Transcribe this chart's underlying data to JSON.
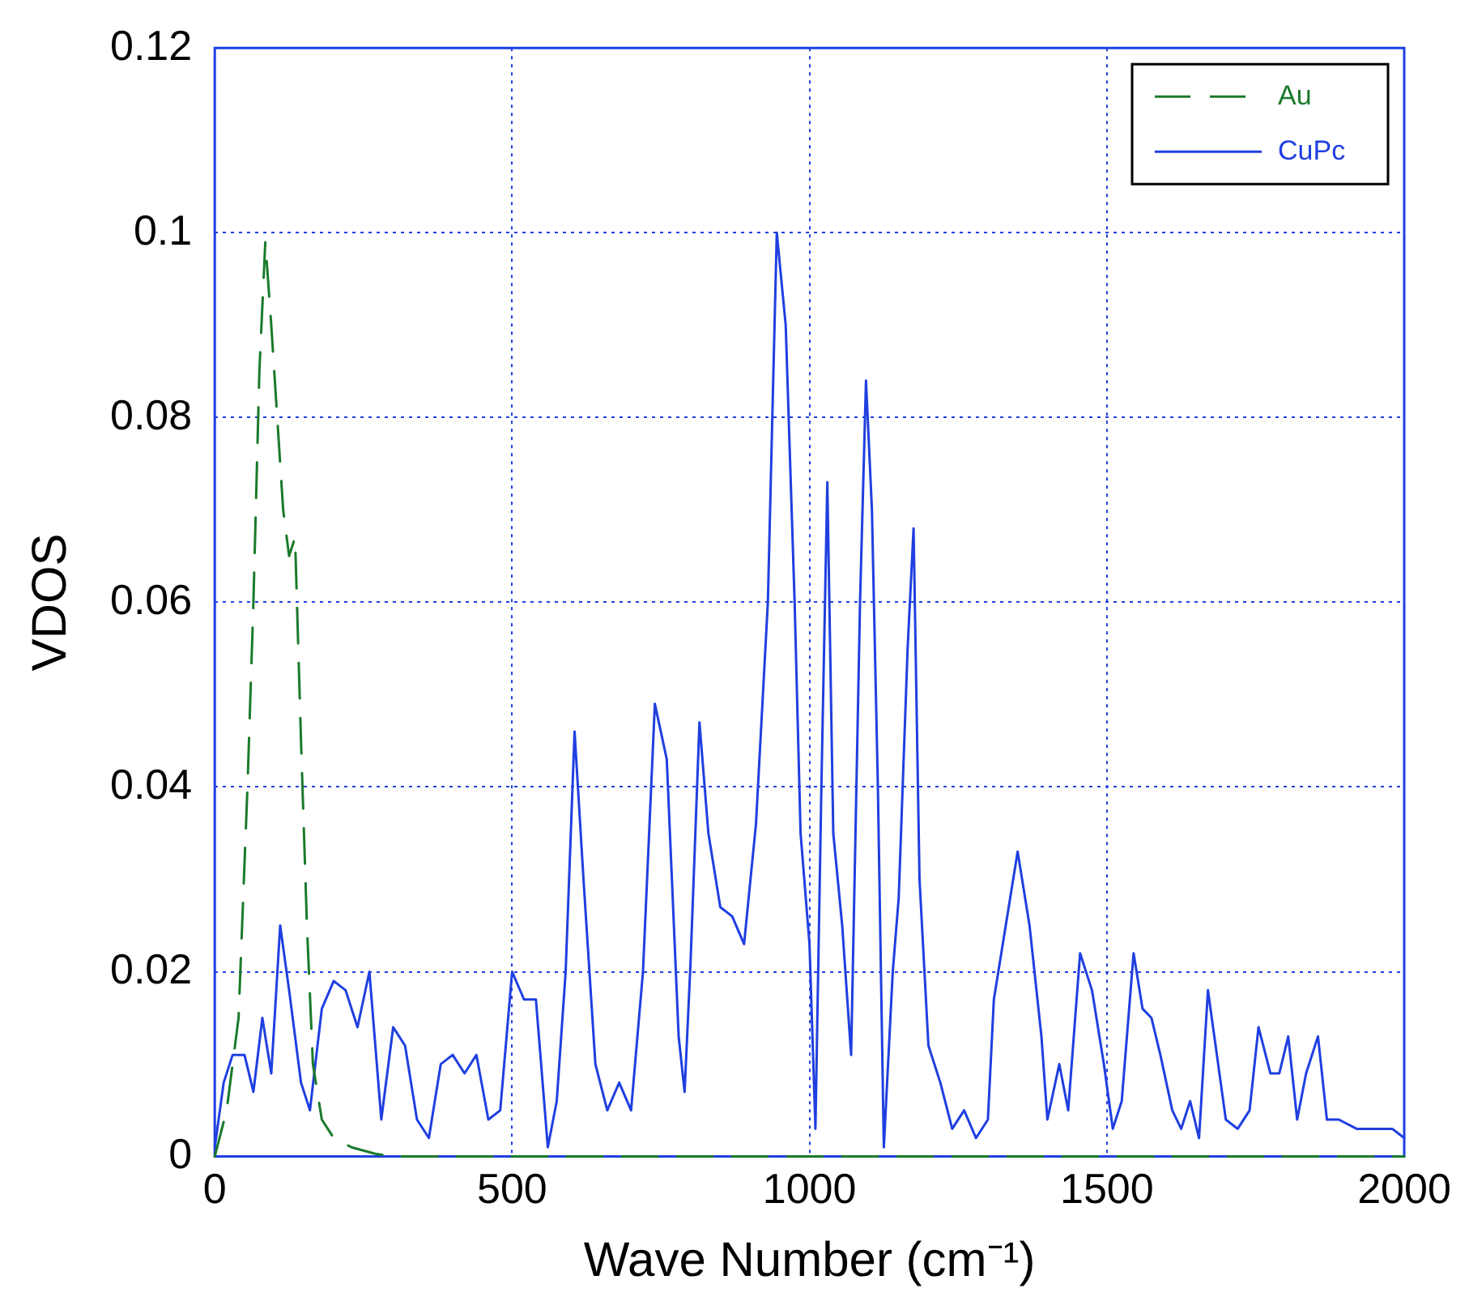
{
  "chart_data": {
    "type": "line",
    "xlabel": "Wave Number (cm⁻¹)",
    "ylabel": "VDOS",
    "xlim": [
      0,
      2000
    ],
    "xticks": [
      0,
      500,
      1000,
      1500,
      2000
    ],
    "ylim": [
      0,
      0.12
    ],
    "yticks": [
      0,
      0.02,
      0.04,
      0.06,
      0.08,
      0.1,
      0.12
    ],
    "grid": true,
    "legend": "top right",
    "marker": "none",
    "series": [
      {
        "name": "Au",
        "color": "#1a7a2a",
        "line_style": "dashed",
        "x": [
          0,
          20,
          40,
          55,
          65,
          75,
          85,
          95,
          105,
          115,
          125,
          135,
          145,
          155,
          165,
          180,
          200,
          230,
          270,
          300,
          500,
          1000,
          1500,
          2000
        ],
        "values": [
          0,
          0.005,
          0.015,
          0.04,
          0.06,
          0.085,
          0.099,
          0.09,
          0.08,
          0.07,
          0.065,
          0.067,
          0.045,
          0.025,
          0.01,
          0.004,
          0.002,
          0.001,
          0.0003,
          0,
          0,
          0,
          0,
          0
        ]
      },
      {
        "name": "CuPc",
        "color": "#1f3fe0",
        "line_style": "solid",
        "x": [
          0,
          15,
          30,
          50,
          65,
          80,
          95,
          110,
          125,
          145,
          160,
          180,
          200,
          220,
          240,
          260,
          280,
          300,
          320,
          340,
          360,
          380,
          400,
          420,
          440,
          460,
          480,
          500,
          520,
          540,
          560,
          575,
          590,
          605,
          620,
          640,
          660,
          680,
          700,
          720,
          740,
          760,
          780,
          790,
          800,
          815,
          830,
          850,
          870,
          890,
          910,
          930,
          945,
          960,
          975,
          985,
          1000,
          1010,
          1020,
          1030,
          1040,
          1055,
          1070,
          1085,
          1095,
          1105,
          1115,
          1125,
          1140,
          1150,
          1165,
          1175,
          1185,
          1200,
          1220,
          1240,
          1260,
          1280,
          1300,
          1310,
          1325,
          1350,
          1370,
          1390,
          1400,
          1420,
          1435,
          1455,
          1475,
          1495,
          1510,
          1525,
          1545,
          1560,
          1575,
          1590,
          1610,
          1625,
          1640,
          1655,
          1670,
          1685,
          1700,
          1720,
          1740,
          1755,
          1775,
          1790,
          1805,
          1820,
          1835,
          1855,
          1870,
          1890,
          1920,
          1950,
          1980,
          2000
        ],
        "values": [
          0.001,
          0.008,
          0.011,
          0.011,
          0.007,
          0.015,
          0.009,
          0.025,
          0.018,
          0.008,
          0.005,
          0.016,
          0.019,
          0.018,
          0.014,
          0.02,
          0.004,
          0.014,
          0.012,
          0.004,
          0.002,
          0.01,
          0.011,
          0.009,
          0.011,
          0.004,
          0.005,
          0.02,
          0.017,
          0.017,
          0.001,
          0.006,
          0.02,
          0.046,
          0.03,
          0.01,
          0.005,
          0.008,
          0.005,
          0.02,
          0.049,
          0.043,
          0.013,
          0.007,
          0.021,
          0.047,
          0.035,
          0.027,
          0.026,
          0.023,
          0.036,
          0.06,
          0.1,
          0.09,
          0.06,
          0.035,
          0.023,
          0.003,
          0.04,
          0.073,
          0.035,
          0.025,
          0.011,
          0.06,
          0.084,
          0.07,
          0.04,
          0.001,
          0.02,
          0.028,
          0.055,
          0.068,
          0.03,
          0.012,
          0.008,
          0.003,
          0.005,
          0.002,
          0.004,
          0.017,
          0.023,
          0.033,
          0.025,
          0.013,
          0.004,
          0.01,
          0.005,
          0.022,
          0.018,
          0.01,
          0.003,
          0.006,
          0.022,
          0.016,
          0.015,
          0.011,
          0.005,
          0.003,
          0.006,
          0.002,
          0.018,
          0.011,
          0.004,
          0.003,
          0.005,
          0.014,
          0.009,
          0.009,
          0.013,
          0.004,
          0.009,
          0.013,
          0.004,
          0.004,
          0.003,
          0.003,
          0.003,
          0.002
        ]
      }
    ]
  }
}
